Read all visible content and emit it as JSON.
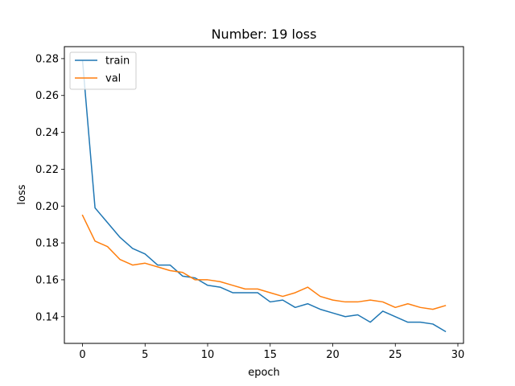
{
  "chart_data": {
    "type": "line",
    "title": "Number: 19 loss",
    "xlabel": "epoch",
    "ylabel": "loss",
    "xlim": [
      -1.45,
      30.45
    ],
    "ylim": [
      0.1255,
      0.2865
    ],
    "xticks": [
      0,
      5,
      10,
      15,
      20,
      25,
      30
    ],
    "yticks": [
      0.14,
      0.16,
      0.18,
      0.2,
      0.22,
      0.24,
      0.26,
      0.28
    ],
    "ytick_labels": [
      "0.14",
      "0.16",
      "0.18",
      "0.20",
      "0.22",
      "0.24",
      "0.26",
      "0.28"
    ],
    "grid": false,
    "legend_position": "top-left",
    "x": [
      0,
      1,
      2,
      3,
      4,
      5,
      6,
      7,
      8,
      9,
      10,
      11,
      12,
      13,
      14,
      15,
      16,
      17,
      18,
      19,
      20,
      21,
      22,
      23,
      24,
      25,
      26,
      27,
      28,
      29
    ],
    "series": [
      {
        "name": "train",
        "color": "#1f77b4",
        "values": [
          0.279,
          0.199,
          0.191,
          0.183,
          0.177,
          0.174,
          0.168,
          0.168,
          0.162,
          0.161,
          0.157,
          0.156,
          0.153,
          0.153,
          0.153,
          0.148,
          0.149,
          0.145,
          0.147,
          0.144,
          0.142,
          0.14,
          0.141,
          0.137,
          0.143,
          0.14,
          0.137,
          0.137,
          0.136,
          0.132
        ]
      },
      {
        "name": "val",
        "color": "#ff7f0e",
        "values": [
          0.195,
          0.181,
          0.178,
          0.171,
          0.168,
          0.169,
          0.167,
          0.165,
          0.164,
          0.16,
          0.16,
          0.159,
          0.157,
          0.155,
          0.155,
          0.153,
          0.151,
          0.153,
          0.156,
          0.151,
          0.149,
          0.148,
          0.148,
          0.149,
          0.148,
          0.145,
          0.147,
          0.145,
          0.144,
          0.146
        ]
      }
    ]
  }
}
